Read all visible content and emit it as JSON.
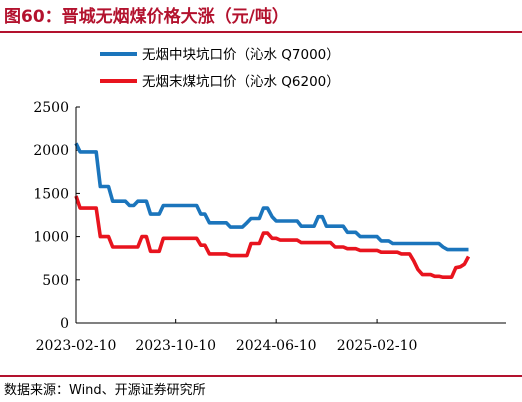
{
  "header": {
    "title": "图60：晋城无烟煤价格大涨（元/吨）"
  },
  "footer": {
    "source": "数据来源：Wind、开源证券研究所"
  },
  "colors": {
    "accent": "#b3122e",
    "series_blue": "#1b75bc",
    "series_red": "#e8141e"
  },
  "chart_data": {
    "type": "line",
    "title": "",
    "xlabel": "",
    "ylabel": "",
    "ylim": [
      0,
      2500
    ],
    "yticks": [
      0,
      500,
      1000,
      1500,
      2000,
      2500
    ],
    "xlim": [
      "2023-02-10",
      "2025-12-20"
    ],
    "xticks": [
      "2023-02-10",
      "2023-10-10",
      "2024-06-10",
      "2025-02-10"
    ],
    "grid": false,
    "legend": "top-right",
    "series": [
      {
        "name": "无烟中块坑口价（沁水 Q7000）",
        "color": "#1b75bc",
        "points": [
          [
            "2023-02-10",
            2080
          ],
          [
            "2023-02-20",
            1980
          ],
          [
            "2023-03-01",
            1980
          ],
          [
            "2023-03-10",
            1980
          ],
          [
            "2023-03-20",
            1980
          ],
          [
            "2023-03-31",
            1980
          ],
          [
            "2023-04-10",
            1580
          ],
          [
            "2023-04-20",
            1580
          ],
          [
            "2023-04-30",
            1580
          ],
          [
            "2023-05-10",
            1410
          ],
          [
            "2023-05-20",
            1410
          ],
          [
            "2023-05-31",
            1410
          ],
          [
            "2023-06-10",
            1410
          ],
          [
            "2023-06-20",
            1360
          ],
          [
            "2023-06-30",
            1360
          ],
          [
            "2023-07-10",
            1410
          ],
          [
            "2023-07-20",
            1410
          ],
          [
            "2023-07-31",
            1410
          ],
          [
            "2023-08-10",
            1260
          ],
          [
            "2023-08-20",
            1260
          ],
          [
            "2023-08-31",
            1260
          ],
          [
            "2023-09-10",
            1360
          ],
          [
            "2023-09-20",
            1360
          ],
          [
            "2023-09-30",
            1360
          ],
          [
            "2023-10-10",
            1360
          ],
          [
            "2023-10-20",
            1360
          ],
          [
            "2023-10-31",
            1360
          ],
          [
            "2023-11-10",
            1360
          ],
          [
            "2023-11-20",
            1360
          ],
          [
            "2023-11-30",
            1360
          ],
          [
            "2023-12-10",
            1260
          ],
          [
            "2023-12-20",
            1260
          ],
          [
            "2023-12-31",
            1160
          ],
          [
            "2024-01-10",
            1160
          ],
          [
            "2024-01-20",
            1160
          ],
          [
            "2024-01-31",
            1160
          ],
          [
            "2024-02-10",
            1160
          ],
          [
            "2024-02-20",
            1110
          ],
          [
            "2024-02-29",
            1110
          ],
          [
            "2024-03-10",
            1110
          ],
          [
            "2024-03-20",
            1110
          ],
          [
            "2024-03-31",
            1160
          ],
          [
            "2024-04-10",
            1210
          ],
          [
            "2024-04-20",
            1210
          ],
          [
            "2024-04-30",
            1210
          ],
          [
            "2024-05-10",
            1330
          ],
          [
            "2024-05-20",
            1330
          ],
          [
            "2024-05-31",
            1230
          ],
          [
            "2024-06-10",
            1180
          ],
          [
            "2024-06-20",
            1180
          ],
          [
            "2024-06-30",
            1180
          ],
          [
            "2024-07-10",
            1180
          ],
          [
            "2024-07-20",
            1180
          ],
          [
            "2024-07-31",
            1180
          ],
          [
            "2024-08-10",
            1120
          ],
          [
            "2024-08-20",
            1120
          ],
          [
            "2024-08-31",
            1120
          ],
          [
            "2024-09-10",
            1120
          ],
          [
            "2024-09-20",
            1230
          ],
          [
            "2024-09-30",
            1230
          ],
          [
            "2024-10-10",
            1120
          ],
          [
            "2024-10-20",
            1120
          ],
          [
            "2024-10-31",
            1120
          ],
          [
            "2024-11-10",
            1120
          ],
          [
            "2024-11-20",
            1120
          ],
          [
            "2024-11-30",
            1050
          ],
          [
            "2024-12-10",
            1050
          ],
          [
            "2024-12-20",
            1050
          ],
          [
            "2024-12-31",
            1000
          ],
          [
            "2025-01-10",
            1000
          ],
          [
            "2025-01-20",
            1000
          ],
          [
            "2025-01-31",
            1000
          ],
          [
            "2025-02-10",
            1000
          ],
          [
            "2025-02-20",
            950
          ],
          [
            "2025-02-28",
            950
          ],
          [
            "2025-03-10",
            950
          ],
          [
            "2025-03-20",
            920
          ],
          [
            "2025-03-31",
            920
          ],
          [
            "2025-04-10",
            920
          ],
          [
            "2025-04-20",
            920
          ],
          [
            "2025-04-30",
            920
          ],
          [
            "2025-05-10",
            920
          ],
          [
            "2025-05-20",
            920
          ],
          [
            "2025-05-31",
            920
          ],
          [
            "2025-06-10",
            920
          ],
          [
            "2025-06-20",
            920
          ],
          [
            "2025-06-30",
            920
          ],
          [
            "2025-07-10",
            920
          ],
          [
            "2025-07-20",
            880
          ],
          [
            "2025-07-31",
            850
          ],
          [
            "2025-08-10",
            850
          ],
          [
            "2025-08-20",
            850
          ],
          [
            "2025-08-31",
            850
          ],
          [
            "2025-09-10",
            850
          ],
          [
            "2025-09-20",
            850
          ]
        ]
      },
      {
        "name": "无烟末煤坑口价（沁水 Q6200）",
        "color": "#e8141e",
        "points": [
          [
            "2023-02-10",
            1470
          ],
          [
            "2023-02-20",
            1330
          ],
          [
            "2023-03-01",
            1330
          ],
          [
            "2023-03-10",
            1330
          ],
          [
            "2023-03-20",
            1330
          ],
          [
            "2023-03-31",
            1330
          ],
          [
            "2023-04-10",
            1000
          ],
          [
            "2023-04-20",
            1000
          ],
          [
            "2023-04-30",
            1000
          ],
          [
            "2023-05-10",
            880
          ],
          [
            "2023-05-20",
            880
          ],
          [
            "2023-05-31",
            880
          ],
          [
            "2023-06-10",
            880
          ],
          [
            "2023-06-20",
            880
          ],
          [
            "2023-06-30",
            880
          ],
          [
            "2023-07-10",
            880
          ],
          [
            "2023-07-20",
            1000
          ],
          [
            "2023-07-31",
            1000
          ],
          [
            "2023-08-10",
            830
          ],
          [
            "2023-08-20",
            830
          ],
          [
            "2023-08-31",
            830
          ],
          [
            "2023-09-10",
            980
          ],
          [
            "2023-09-20",
            980
          ],
          [
            "2023-09-30",
            980
          ],
          [
            "2023-10-10",
            980
          ],
          [
            "2023-10-20",
            980
          ],
          [
            "2023-10-31",
            980
          ],
          [
            "2023-11-10",
            980
          ],
          [
            "2023-11-20",
            980
          ],
          [
            "2023-11-30",
            980
          ],
          [
            "2023-12-10",
            900
          ],
          [
            "2023-12-20",
            900
          ],
          [
            "2023-12-31",
            800
          ],
          [
            "2024-01-10",
            800
          ],
          [
            "2024-01-20",
            800
          ],
          [
            "2024-01-31",
            800
          ],
          [
            "2024-02-10",
            800
          ],
          [
            "2024-02-20",
            780
          ],
          [
            "2024-02-29",
            780
          ],
          [
            "2024-03-10",
            780
          ],
          [
            "2024-03-20",
            780
          ],
          [
            "2024-03-31",
            780
          ],
          [
            "2024-04-10",
            920
          ],
          [
            "2024-04-20",
            920
          ],
          [
            "2024-04-30",
            920
          ],
          [
            "2024-05-10",
            1040
          ],
          [
            "2024-05-20",
            1040
          ],
          [
            "2024-05-31",
            980
          ],
          [
            "2024-06-10",
            980
          ],
          [
            "2024-06-20",
            960
          ],
          [
            "2024-06-30",
            960
          ],
          [
            "2024-07-10",
            960
          ],
          [
            "2024-07-20",
            960
          ],
          [
            "2024-07-31",
            960
          ],
          [
            "2024-08-10",
            930
          ],
          [
            "2024-08-20",
            930
          ],
          [
            "2024-08-31",
            930
          ],
          [
            "2024-09-10",
            930
          ],
          [
            "2024-09-20",
            930
          ],
          [
            "2024-09-30",
            930
          ],
          [
            "2024-10-10",
            930
          ],
          [
            "2024-10-20",
            930
          ],
          [
            "2024-10-31",
            880
          ],
          [
            "2024-11-10",
            880
          ],
          [
            "2024-11-20",
            880
          ],
          [
            "2024-11-30",
            860
          ],
          [
            "2024-12-10",
            860
          ],
          [
            "2024-12-20",
            860
          ],
          [
            "2024-12-31",
            840
          ],
          [
            "2025-01-10",
            840
          ],
          [
            "2025-01-20",
            840
          ],
          [
            "2025-01-31",
            840
          ],
          [
            "2025-02-10",
            840
          ],
          [
            "2025-02-20",
            820
          ],
          [
            "2025-02-28",
            820
          ],
          [
            "2025-03-10",
            820
          ],
          [
            "2025-03-20",
            820
          ],
          [
            "2025-03-31",
            820
          ],
          [
            "2025-04-10",
            800
          ],
          [
            "2025-04-20",
            800
          ],
          [
            "2025-04-30",
            800
          ],
          [
            "2025-05-10",
            720
          ],
          [
            "2025-05-20",
            620
          ],
          [
            "2025-05-31",
            560
          ],
          [
            "2025-06-10",
            560
          ],
          [
            "2025-06-20",
            560
          ],
          [
            "2025-06-30",
            540
          ],
          [
            "2025-07-10",
            540
          ],
          [
            "2025-07-20",
            530
          ],
          [
            "2025-07-31",
            530
          ],
          [
            "2025-08-10",
            530
          ],
          [
            "2025-08-20",
            640
          ],
          [
            "2025-08-31",
            650
          ],
          [
            "2025-09-10",
            680
          ],
          [
            "2025-09-20",
            770
          ]
        ]
      }
    ]
  }
}
